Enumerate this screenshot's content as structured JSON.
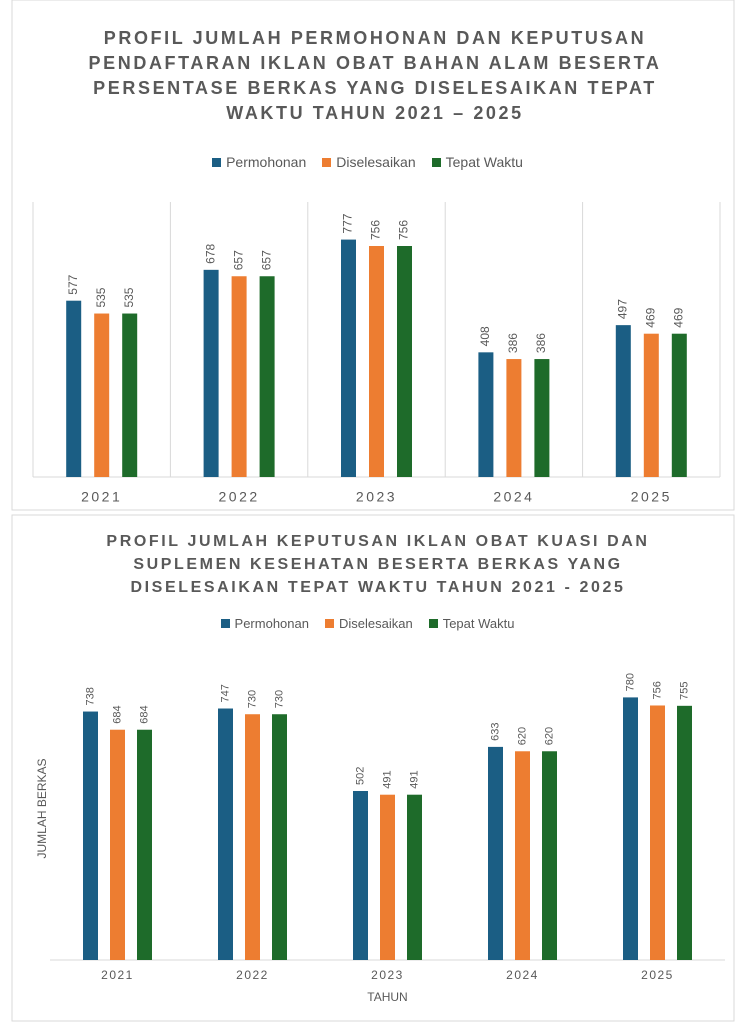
{
  "chart_data": [
    {
      "type": "bar",
      "title": "PROFIL JUMLAH PERMOHONAN DAN KEPUTUSAN PENDAFTARAN IKLAN OBAT BAHAN ALAM BESERTA PERSENTASE BERKAS YANG DISELESAIKAN TEPAT WAKTU TAHUN 2021 – 2025",
      "categories": [
        "2021",
        "2022",
        "2023",
        "2024",
        "2025"
      ],
      "series": [
        {
          "name": "Permohonan",
          "color": "#1b5e84",
          "values": [
            577,
            678,
            777,
            408,
            497
          ]
        },
        {
          "name": "Diselesaikan",
          "color": "#ed7d31",
          "values": [
            535,
            657,
            756,
            386,
            469
          ]
        },
        {
          "name": "Tepat Waktu",
          "color": "#1e6b2a",
          "values": [
            535,
            657,
            756,
            386,
            469
          ]
        }
      ],
      "ylim": [
        0,
        900
      ],
      "grid": true
    },
    {
      "type": "bar",
      "title": "PROFIL JUMLAH KEPUTUSAN IKLAN OBAT KUASI DAN SUPLEMEN KESEHATAN BESERTA BERKAS YANG DISELESAIKAN TEPAT WAKTU TAHUN 2021 - 2025",
      "x_label": "TAHUN",
      "y_label": "JUMLAH BERKAS",
      "categories": [
        "2021",
        "2022",
        "2023",
        "2024",
        "2025"
      ],
      "series": [
        {
          "name": "Permohonan",
          "color": "#1b5e84",
          "values": [
            738,
            747,
            502,
            633,
            780
          ]
        },
        {
          "name": "Diselesaikan",
          "color": "#ed7d31",
          "values": [
            684,
            730,
            491,
            620,
            756
          ]
        },
        {
          "name": "Tepat Waktu",
          "color": "#1e6b2a",
          "values": [
            684,
            730,
            491,
            620,
            755
          ]
        }
      ],
      "ylim": [
        0,
        900
      ],
      "grid": false
    }
  ]
}
